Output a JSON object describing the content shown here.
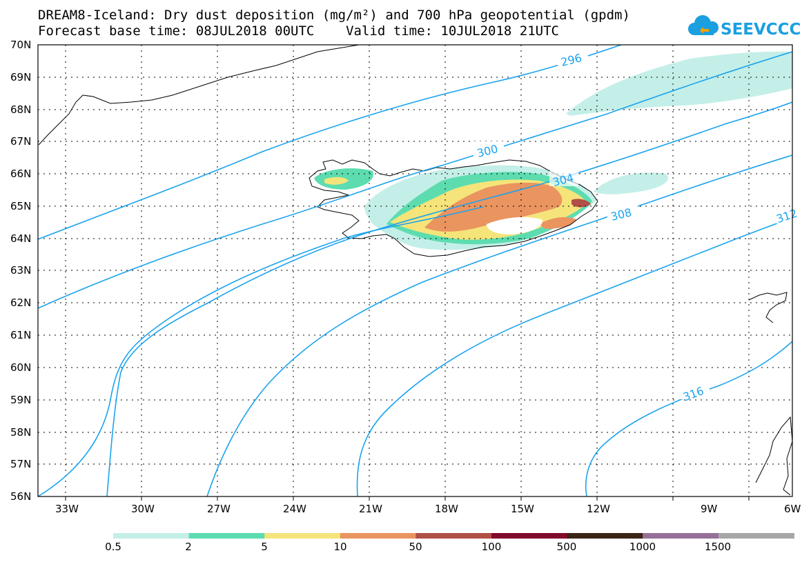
{
  "header": {
    "title_line1": "DREAM8-Iceland: Dry dust deposition (mg/m²) and 700 hPa geopotential (gpdm)",
    "title_line2": "Forecast base time: 08JUL2018 00UTC    Valid time: 10JUL2018 21UTC"
  },
  "logo": {
    "text": "SEEVCCC",
    "icon": "cloud-icon",
    "color": "#1a9fe0"
  },
  "map": {
    "lat_labels": [
      "70N",
      "69N",
      "68N",
      "67N",
      "66N",
      "65N",
      "64N",
      "63N",
      "62N",
      "61N",
      "60N",
      "59N",
      "58N",
      "57N",
      "56N"
    ],
    "lon_labels": [
      "33W",
      "30W",
      "27W",
      "24W",
      "21W",
      "18W",
      "15W",
      "12W",
      "9W",
      "6W"
    ],
    "contour_color": "#1aa3ee",
    "contour_labels": [
      "296",
      "300",
      "304",
      "308",
      "312",
      "316"
    ]
  },
  "legend": {
    "colors": [
      "#c3efe8",
      "#5ddcb0",
      "#f5e47a",
      "#ea9460",
      "#b05046",
      "#820a2a",
      "#3a2414",
      "#967098",
      "#a6a6a6"
    ],
    "labels": [
      "0.5",
      "2",
      "5",
      "10",
      "50",
      "100",
      "500",
      "1000",
      "1500"
    ]
  }
}
